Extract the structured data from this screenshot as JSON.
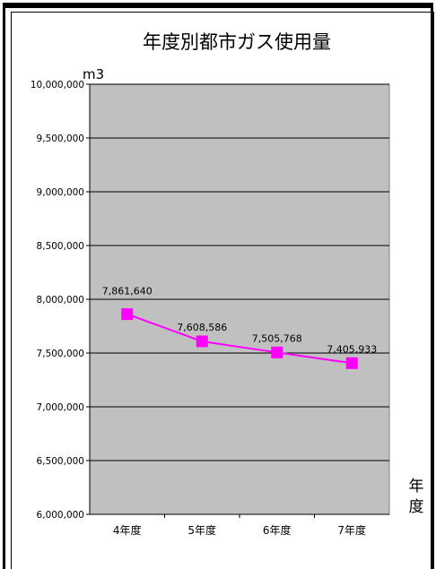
{
  "chart_data": {
    "type": "line",
    "title": "年度別都市ガス使用量",
    "ylabel": "m3",
    "xlabel": "年度",
    "categories": [
      "4年度",
      "5年度",
      "6年度",
      "7年度"
    ],
    "series": [
      {
        "values": [
          7861640,
          7608586,
          7505768,
          7405933
        ],
        "labels": [
          "7,861,640",
          "7,608,586",
          "7,505,768",
          "7,405,933"
        ]
      }
    ],
    "ylim": [
      6000000,
      10000000
    ],
    "yticks": [
      {
        "value": 10000000,
        "label": "10,000,000"
      },
      {
        "value": 9500000,
        "label": "9,500,000"
      },
      {
        "value": 9000000,
        "label": "9,000,000"
      },
      {
        "value": 8500000,
        "label": "8,500,000"
      },
      {
        "value": 8000000,
        "label": "8,000,000"
      },
      {
        "value": 7500000,
        "label": "7,500,000"
      },
      {
        "value": 7000000,
        "label": "7,000,000"
      },
      {
        "value": 6500000,
        "label": "6,500,000"
      },
      {
        "value": 6000000,
        "label": "6,000,000"
      }
    ],
    "grid": true,
    "colors": {
      "plot_background": "#c0c0c0",
      "series": "#ff00ff",
      "gridline": "#000000"
    }
  }
}
